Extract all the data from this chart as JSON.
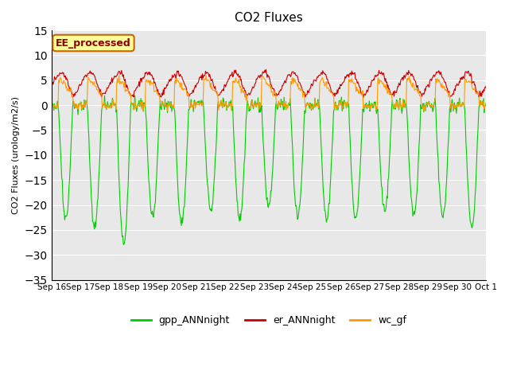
{
  "title": "CO2 Fluxes",
  "ylabel": "CO2 Fluxes (urology/m2/s)",
  "ylim": [
    -35,
    15
  ],
  "yticks": [
    -35,
    -30,
    -25,
    -20,
    -15,
    -10,
    -5,
    0,
    5,
    10,
    15
  ],
  "background_color": "#e8e8e8",
  "figure_bg": "#ffffff",
  "line_colors": {
    "gpp": "#00cc00",
    "er": "#cc0000",
    "wc": "#ff9900"
  },
  "legend_label": "EE_processed",
  "legend_box_color": "#ffff99",
  "legend_box_edge": "#cc6600",
  "n_days": 15,
  "points_per_day": 48,
  "x_tick_labels": [
    "Sep 16",
    "Sep 17",
    "Sep 18",
    "Sep 19",
    "Sep 20",
    "Sep 21",
    "Sep 22",
    "Sep 23",
    "Sep 24",
    "Sep 25",
    "Sep 26",
    "Sep 27",
    "Sep 28",
    "Sep 29",
    "Sep 30",
    "Oct 1"
  ]
}
